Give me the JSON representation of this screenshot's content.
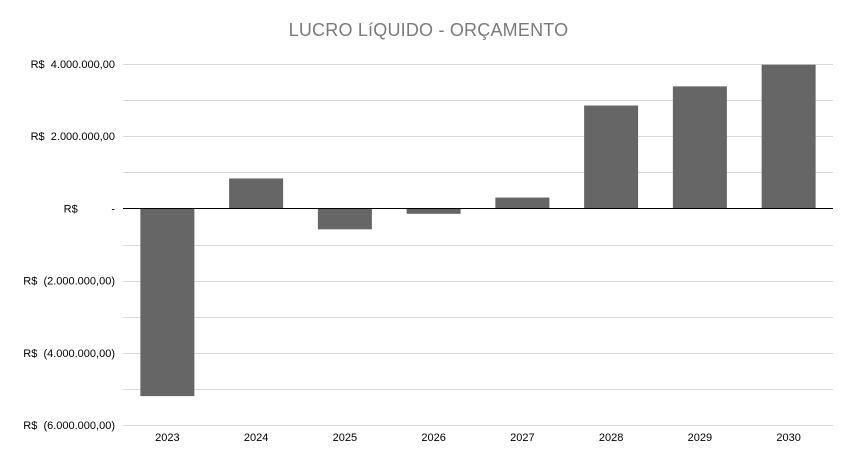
{
  "chart_data": {
    "type": "bar",
    "title": "LUCRO LíQUIDO - ORÇAMENTO",
    "categories": [
      "2023",
      "2024",
      "2025",
      "2026",
      "2027",
      "2028",
      "2029",
      "2030"
    ],
    "series": [
      {
        "values": [
          -5200000,
          830000,
          -580000,
          -150000,
          300000,
          2850000,
          3380000,
          3980000
        ]
      }
    ],
    "y_ticks": [
      4000000,
      2000000,
      0,
      -2000000,
      -4000000,
      -6000000
    ],
    "y_tick_labels": [
      "R$  4.000.000,00",
      "R$  2.000.000,00",
      "R$           -",
      "R$  (2.000.000,00)",
      "R$  (4.000.000,00)",
      "R$  (6.000.000,00)"
    ],
    "ylim": [
      -6000000,
      4000000
    ],
    "minor_gridlines": true,
    "legend": "none",
    "colors": {
      "bar": "#666666",
      "gridline": "#d9d9d9",
      "zero_line": "#000000",
      "title": "#7a7a7a",
      "tick_text": "#000000"
    }
  }
}
